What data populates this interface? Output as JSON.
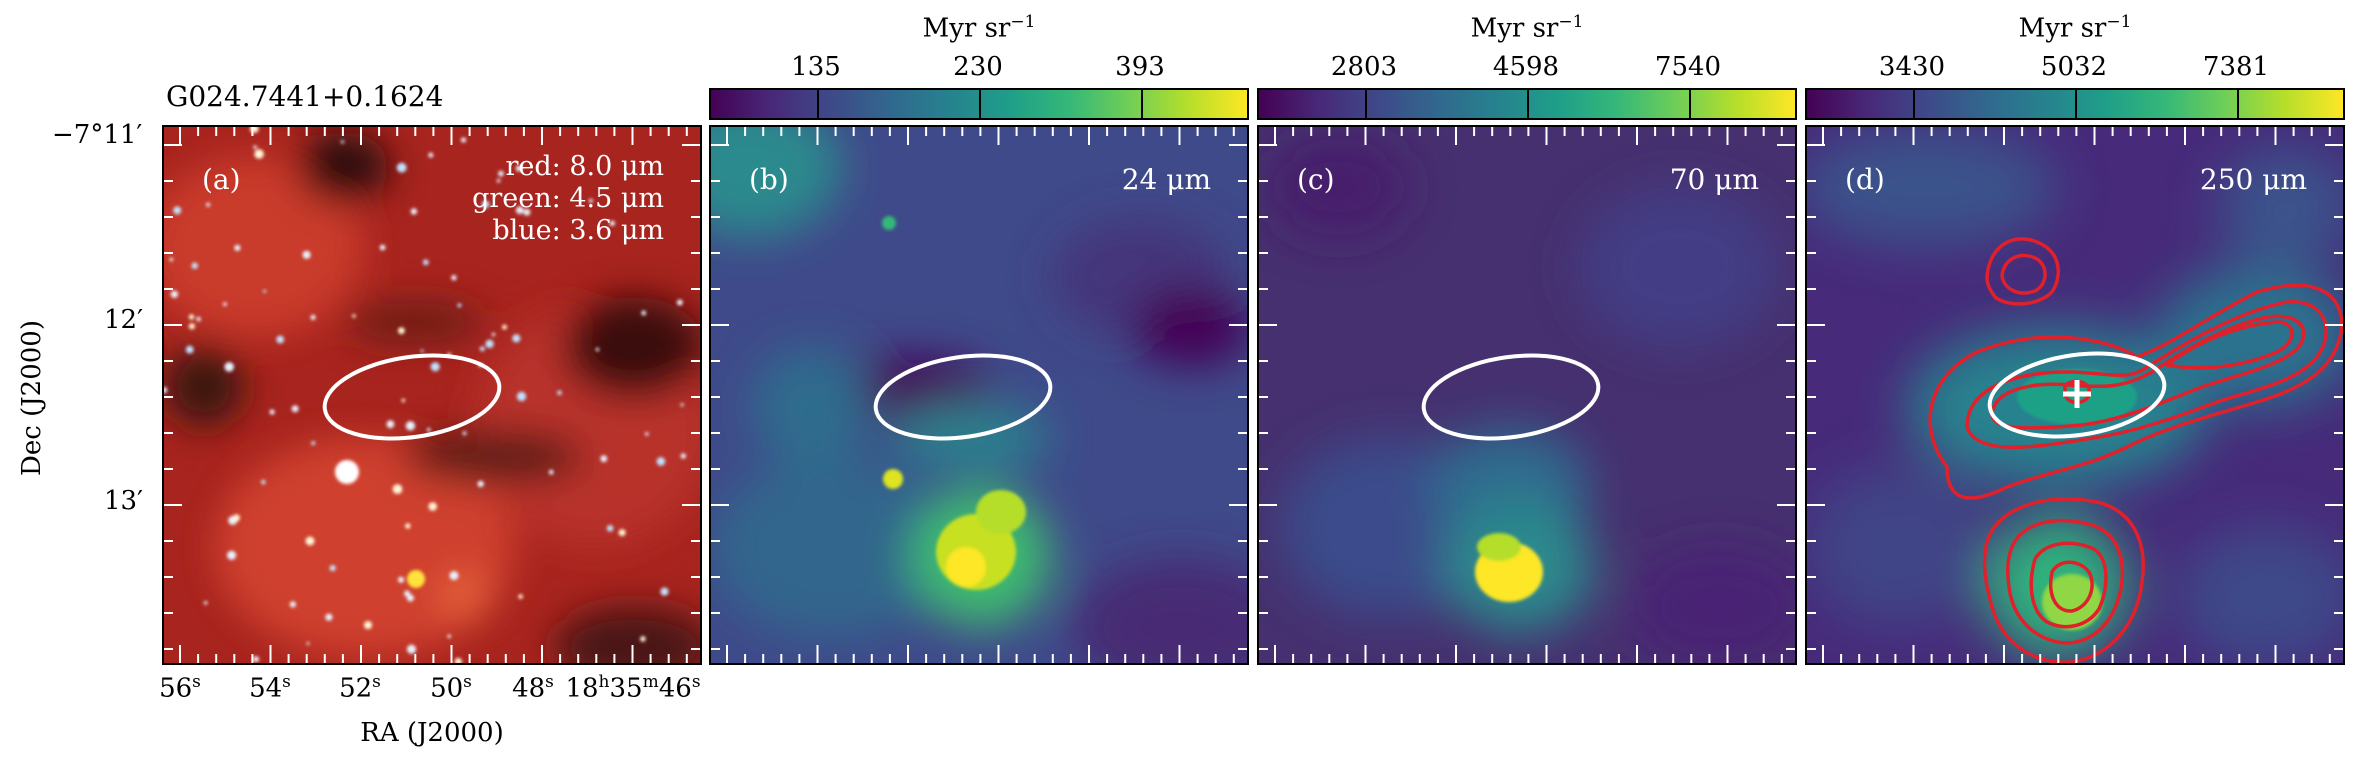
{
  "source_name": "G024.7441+0.1624",
  "panels": [
    {
      "letter": "(a)",
      "bands": [
        "red: 8.0 μm",
        "green: 4.5 μm",
        "blue: 3.6 μm"
      ]
    },
    {
      "letter": "(b)",
      "wavelength": "24 μm"
    },
    {
      "letter": "(c)",
      "wavelength": "70 μm"
    },
    {
      "letter": "(d)",
      "wavelength": "250 μm"
    }
  ],
  "colorbars": [
    {
      "unit": "Myr sr",
      "unit_exp": "−1",
      "ticks": [
        "135",
        "230",
        "393"
      ]
    },
    {
      "unit": "Myr sr",
      "unit_exp": "−1",
      "ticks": [
        "2803",
        "4598",
        "7540"
      ]
    },
    {
      "unit": "Myr sr",
      "unit_exp": "−1",
      "ticks": [
        "3430",
        "5032",
        "7381"
      ]
    }
  ],
  "axes": {
    "ylabel": "Dec (J2000)",
    "xlabel": "RA (J2000)",
    "dec_ticks": [
      {
        "deg": "−7°11′"
      },
      {
        "deg": "12′"
      },
      {
        "deg": "13′"
      }
    ],
    "ra_ticks": [
      {
        "main": "56",
        "sup": "s"
      },
      {
        "main": "54",
        "sup": "s"
      },
      {
        "main": "52",
        "sup": "s"
      },
      {
        "main": "50",
        "sup": "s"
      },
      {
        "main": "48",
        "sup": "s"
      }
    ],
    "ra_last": {
      "h": "18",
      "m": "35",
      "s": "46"
    }
  },
  "colormap": "viridis",
  "colors": {
    "ellipse": "#ffffff",
    "contours": "#e0202a",
    "marker": "#ffffff"
  }
}
